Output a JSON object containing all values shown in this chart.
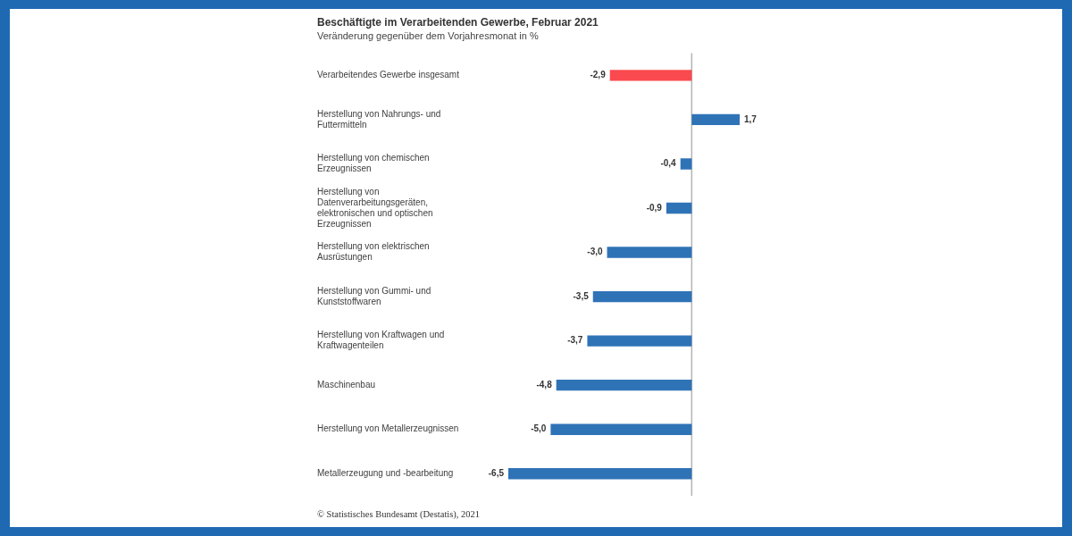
{
  "chart_data": {
    "type": "bar",
    "orientation": "horizontal",
    "title": "Beschäftigte im Verarbeitenden Gewerbe, Februar 2021",
    "subtitle": "Veränderung gegenüber dem Vorjahresmonat in %",
    "categories": [
      "Verarbeitendes Gewerbe insgesamt",
      "Herstellung von Nahrungs- und Futtermitteln",
      "Herstellung von chemischen Erzeugnissen",
      "Herstellung von Datenverarbeitungsgeräten, elektronischen und optischen Erzeugnissen",
      "Herstellung von elektrischen Ausrüstungen",
      "Herstellung von Gummi- und Kunststoffwaren",
      "Herstellung von Kraftwagen und Kraftwagenteilen",
      "Maschinenbau",
      "Herstellung von Metallerzeugnissen",
      "Metallerzeugung und -bearbeitung"
    ],
    "values": [
      -2.9,
      1.7,
      -0.4,
      -0.9,
      -3.0,
      -3.5,
      -3.7,
      -4.8,
      -5.0,
      -6.5
    ],
    "colors": [
      "#fa4a4f",
      "#2f73b7",
      "#2f73b7",
      "#2f73b7",
      "#2f73b7",
      "#2f73b7",
      "#2f73b7",
      "#2f73b7",
      "#2f73b7",
      "#2f73b7"
    ],
    "value_labels": [
      "-2,9",
      "1,7",
      "-0,4",
      "-0,9",
      "-3,0",
      "-3,5",
      "-3,7",
      "-4,8",
      "-5,0",
      "-6,5"
    ],
    "xlim": [
      -6.5,
      1.7
    ],
    "tick_labels": "y",
    "annotations": [
      "© Statistisches Bundesamt (Destatis), 2021"
    ]
  }
}
